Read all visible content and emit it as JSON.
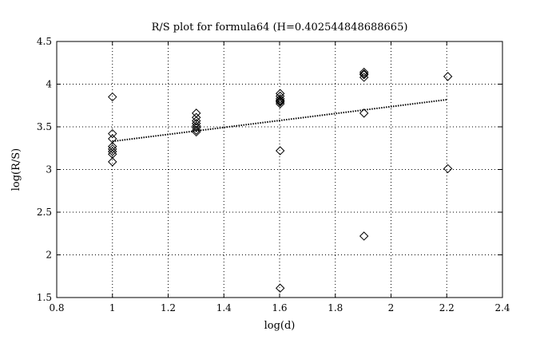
{
  "chart_data": {
    "type": "scatter",
    "title": "R/S plot for formula64 (H=0.402544848688665)",
    "xlabel": "log(d)",
    "ylabel": "log(R/S)",
    "xlim": [
      0.8,
      2.4
    ],
    "ylim": [
      1.5,
      4.5
    ],
    "xticks": [
      "0.8",
      "1",
      "1.2",
      "1.4",
      "1.6",
      "1.8",
      "2",
      "2.2",
      "2.4"
    ],
    "yticks": [
      "1.5",
      "2",
      "2.5",
      "3",
      "3.5",
      "4",
      "4.5"
    ],
    "grid": true,
    "marker": "diamond",
    "series": [
      {
        "x": [
          1,
          1,
          1,
          1,
          1,
          1,
          1,
          1,
          1.301,
          1.301,
          1.301,
          1.301,
          1.301,
          1.301,
          1.301,
          1.301,
          1.602,
          1.602,
          1.602,
          1.602,
          1.602,
          1.602,
          1.602,
          1.602,
          1.602,
          1.903,
          1.903,
          1.903,
          1.903,
          1.903,
          1.903,
          2.204,
          2.204
        ],
        "y": [
          3.85,
          3.42,
          3.36,
          3.27,
          3.24,
          3.21,
          3.18,
          3.09,
          3.66,
          3.61,
          3.57,
          3.54,
          3.51,
          3.49,
          3.46,
          3.44,
          3.89,
          3.86,
          3.83,
          3.8,
          3.79,
          3.77,
          3.22,
          1.61,
          3.81,
          4.14,
          4.11,
          4.08,
          3.66,
          2.22,
          4.12,
          4.09,
          3.01
        ]
      }
    ],
    "fit_line": {
      "x": [
        1,
        2.204
      ],
      "y": [
        3.33,
        3.82
      ]
    },
    "colors": {
      "axis": "#000000",
      "grid": "#000000",
      "marker": "#000000",
      "background": "#ffffff"
    }
  }
}
